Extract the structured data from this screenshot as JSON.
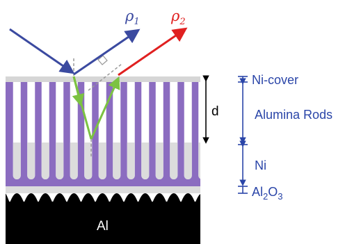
{
  "labels": {
    "rho1": "ρ",
    "rho1_sub": "1",
    "rho2": "ρ",
    "rho2_sub": "2",
    "d": "d",
    "ni_cover": "Ni-cover",
    "alumina_rods": "Alumina Rods",
    "ni": "Ni",
    "al2o3_a": "Al",
    "al2o3_sub_a": "2",
    "al2o3_b": "O",
    "al2o3_sub_b": "3",
    "al": "Al"
  },
  "colors": {
    "ni_cover": "#d6d6d6",
    "alumina": "#8b6cc0",
    "ni_fill": "#dcdcdc",
    "substrate": "#000000",
    "beam_incident": "#3b4aa0",
    "beam_reflected_1": "#3b4aa0",
    "beam_reflected_2": "#e02020",
    "beam_internal": "#7cc242",
    "scale_bar": "#2a45a8",
    "label_text": "#2a45a8"
  }
}
